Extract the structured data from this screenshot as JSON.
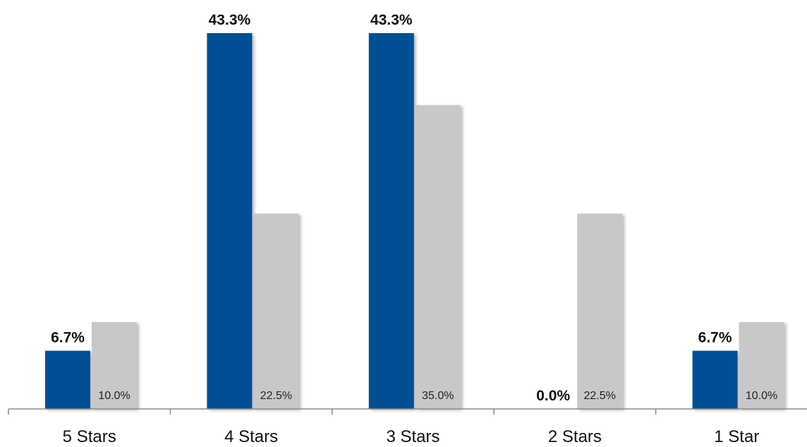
{
  "chart_data": {
    "type": "bar",
    "title": "",
    "xlabel": "",
    "ylabel": "",
    "categories": [
      "5 Stars",
      "4 Stars",
      "3 Stars",
      "2 Stars",
      "1 Star"
    ],
    "ylim": [
      0,
      45
    ],
    "grid": false,
    "legend": "none",
    "series": [
      {
        "values": [
          6.7,
          43.3,
          43.3,
          0.0,
          6.7
        ],
        "labels": [
          "6.7%",
          "43.3%",
          "43.3%",
          "0.0%",
          "6.7%"
        ],
        "color": "#014f94"
      },
      {
        "values": [
          10.0,
          22.5,
          35.0,
          22.5,
          10.0
        ],
        "labels": [
          "10.0%",
          "22.5%",
          "35.0%",
          "22.5%",
          "10.0%"
        ],
        "color": "#c8c8ca"
      }
    ]
  }
}
